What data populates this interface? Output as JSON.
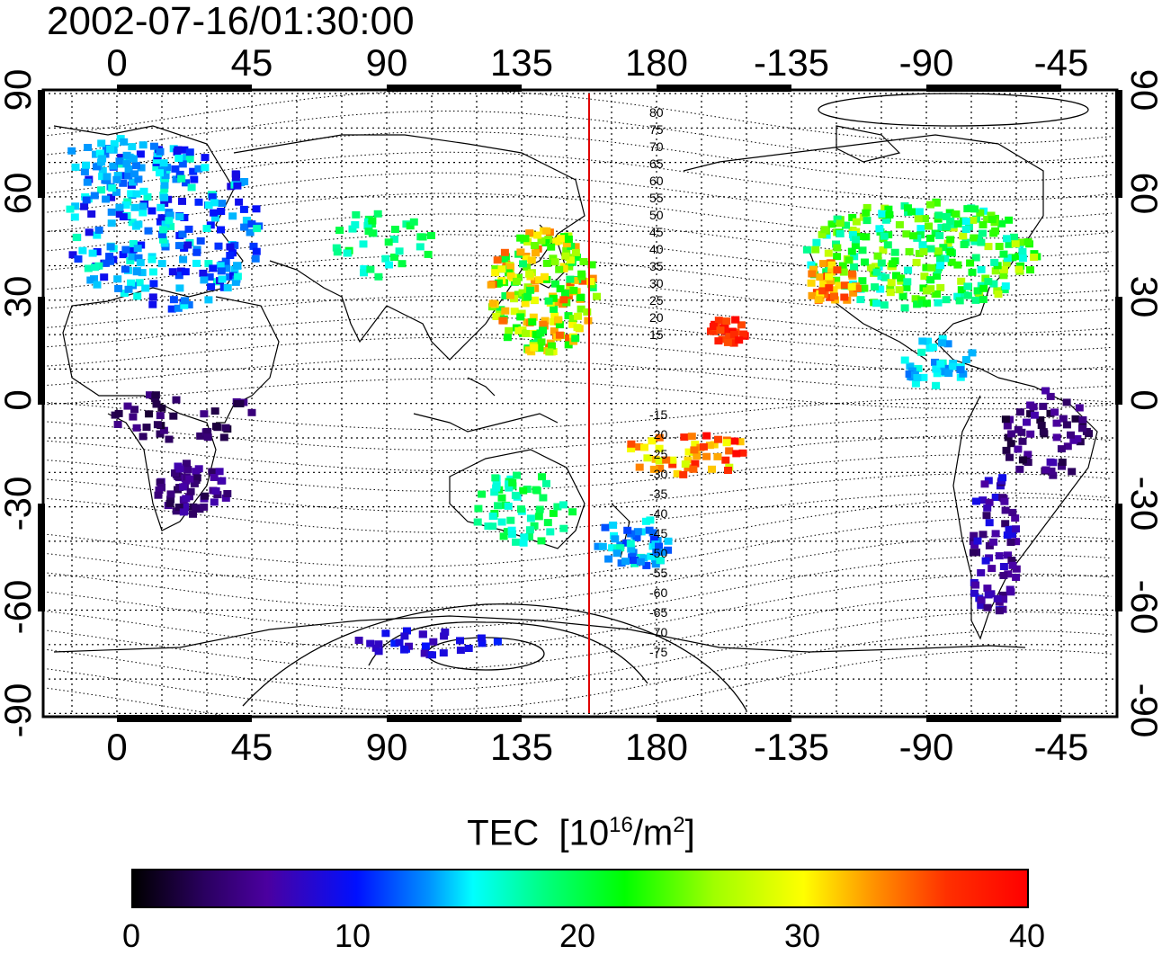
{
  "timestamp": "2002-07-16/01:30:00",
  "map": {
    "lon_ticks": [
      "0",
      "45",
      "90",
      "135",
      "180",
      "-135",
      "-90",
      "-45"
    ],
    "lat_ticks": [
      "90",
      "60",
      "30",
      "0",
      "-30",
      "-60",
      "-90"
    ],
    "terminator_longitude_label": "",
    "contour_labels_north": [
      "80",
      "75",
      "70",
      "65",
      "60",
      "55",
      "50",
      "45",
      "40",
      "35",
      "30",
      "25",
      "20",
      "15"
    ],
    "contour_labels_south": [
      "-15",
      "-20",
      "-25",
      "-30",
      "-35",
      "-40",
      "-45",
      "-50",
      "-55",
      "-60",
      "-65",
      "-70",
      "-75"
    ]
  },
  "colorbar": {
    "title_main": "TEC",
    "title_unit_prefix": "[10",
    "title_unit_exp": "16",
    "title_unit_mid": "/m",
    "title_unit_exp2": "2",
    "title_unit_suffix": "]",
    "ticks": [
      "0",
      "10",
      "20",
      "30",
      "40"
    ],
    "range": [
      0,
      40
    ],
    "colors": [
      "#000000",
      "#4b00a0",
      "#0010ff",
      "#00ffff",
      "#00ff00",
      "#ffff00",
      "#ff0000"
    ]
  }
}
